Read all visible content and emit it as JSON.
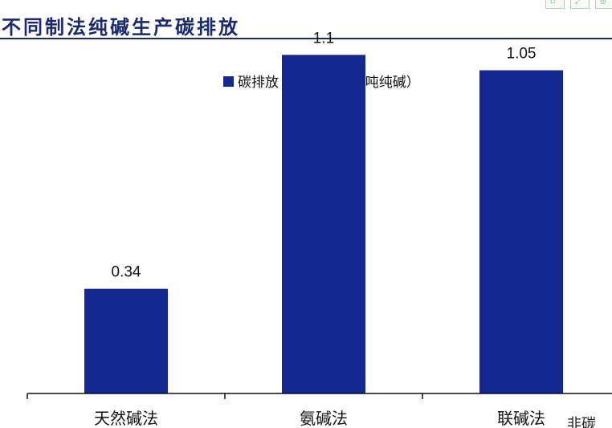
{
  "page": {
    "title": "不同制法纯碱生产碳排放",
    "accent_color": "#1a2a6e",
    "toolbar_icons": [
      "image-icon",
      "expand-icon",
      "settings-icon"
    ],
    "footnote_partial": "非碳"
  },
  "chart_data": {
    "type": "bar",
    "categories": [
      "天然碱法",
      "氨碱法",
      "联碱法"
    ],
    "series": [
      {
        "name": "碳排放（吨二氧化碳/吨纯碱）",
        "values": [
          0.34,
          1.1,
          1.05
        ],
        "color": "#12278f"
      }
    ],
    "data_labels": [
      "0.34",
      "1.1",
      "1.05"
    ],
    "legend_position": "top",
    "ylim": [
      0,
      1.2
    ],
    "grid": false,
    "xlabel": "",
    "ylabel": ""
  }
}
